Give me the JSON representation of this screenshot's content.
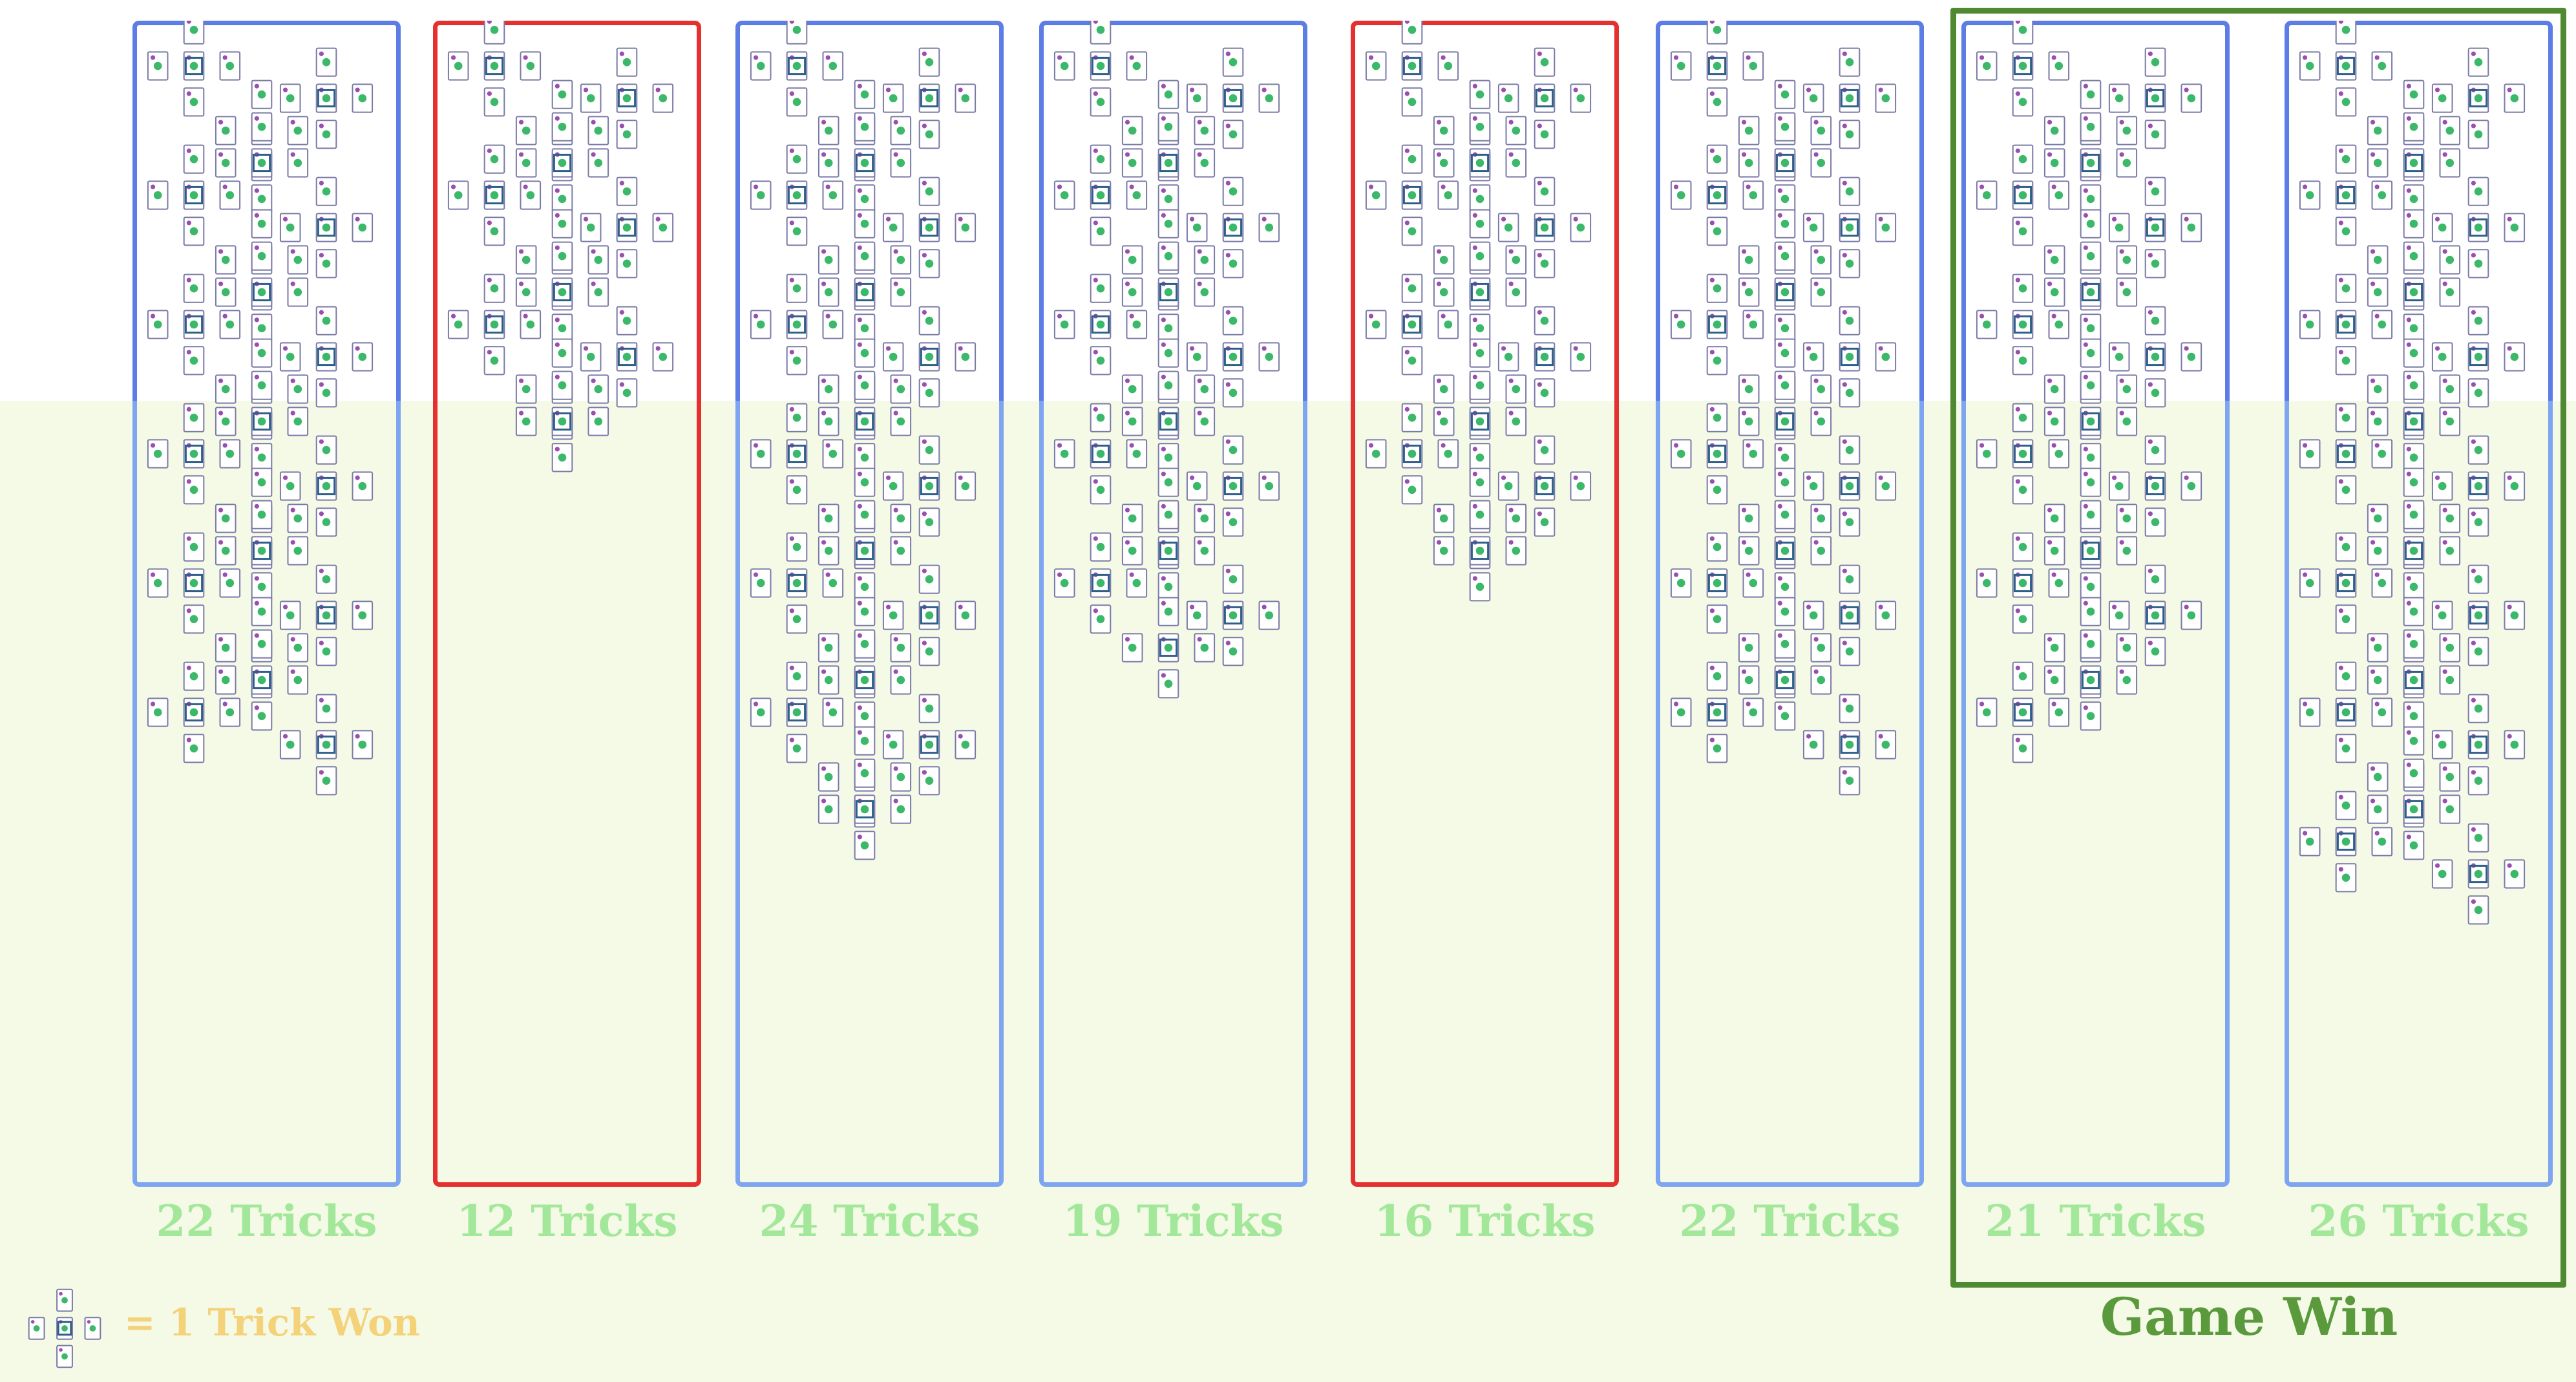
{
  "columns": [
    {
      "tricks": 22,
      "label": "22 Tricks",
      "outcome": "blue"
    },
    {
      "tricks": 12,
      "label": "12 Tricks",
      "outcome": "red"
    },
    {
      "tricks": 24,
      "label": "24 Tricks",
      "outcome": "blue"
    },
    {
      "tricks": 19,
      "label": "19 Tricks",
      "outcome": "blue"
    },
    {
      "tricks": 16,
      "label": "16 Tricks",
      "outcome": "red"
    },
    {
      "tricks": 22,
      "label": "22 Tricks",
      "outcome": "blue"
    },
    {
      "tricks": 21,
      "label": "21 Tricks",
      "outcome": "blue"
    },
    {
      "tricks": 26,
      "label": "26 Tricks",
      "outcome": "blue"
    }
  ],
  "game_win_label": "Game Win",
  "legend": {
    "text": "= 1 Trick Won",
    "icon": "trick-cross-icon"
  },
  "colors": {
    "blue_border": "#5c7ce6",
    "light_blue_border": "#7ea5f0",
    "red_border": "#e53030",
    "win_frame": "#4f8a33",
    "tricks_text": "#a3e89a",
    "legend_text": "#f4d27a",
    "lower_band": "#f4fae6"
  }
}
